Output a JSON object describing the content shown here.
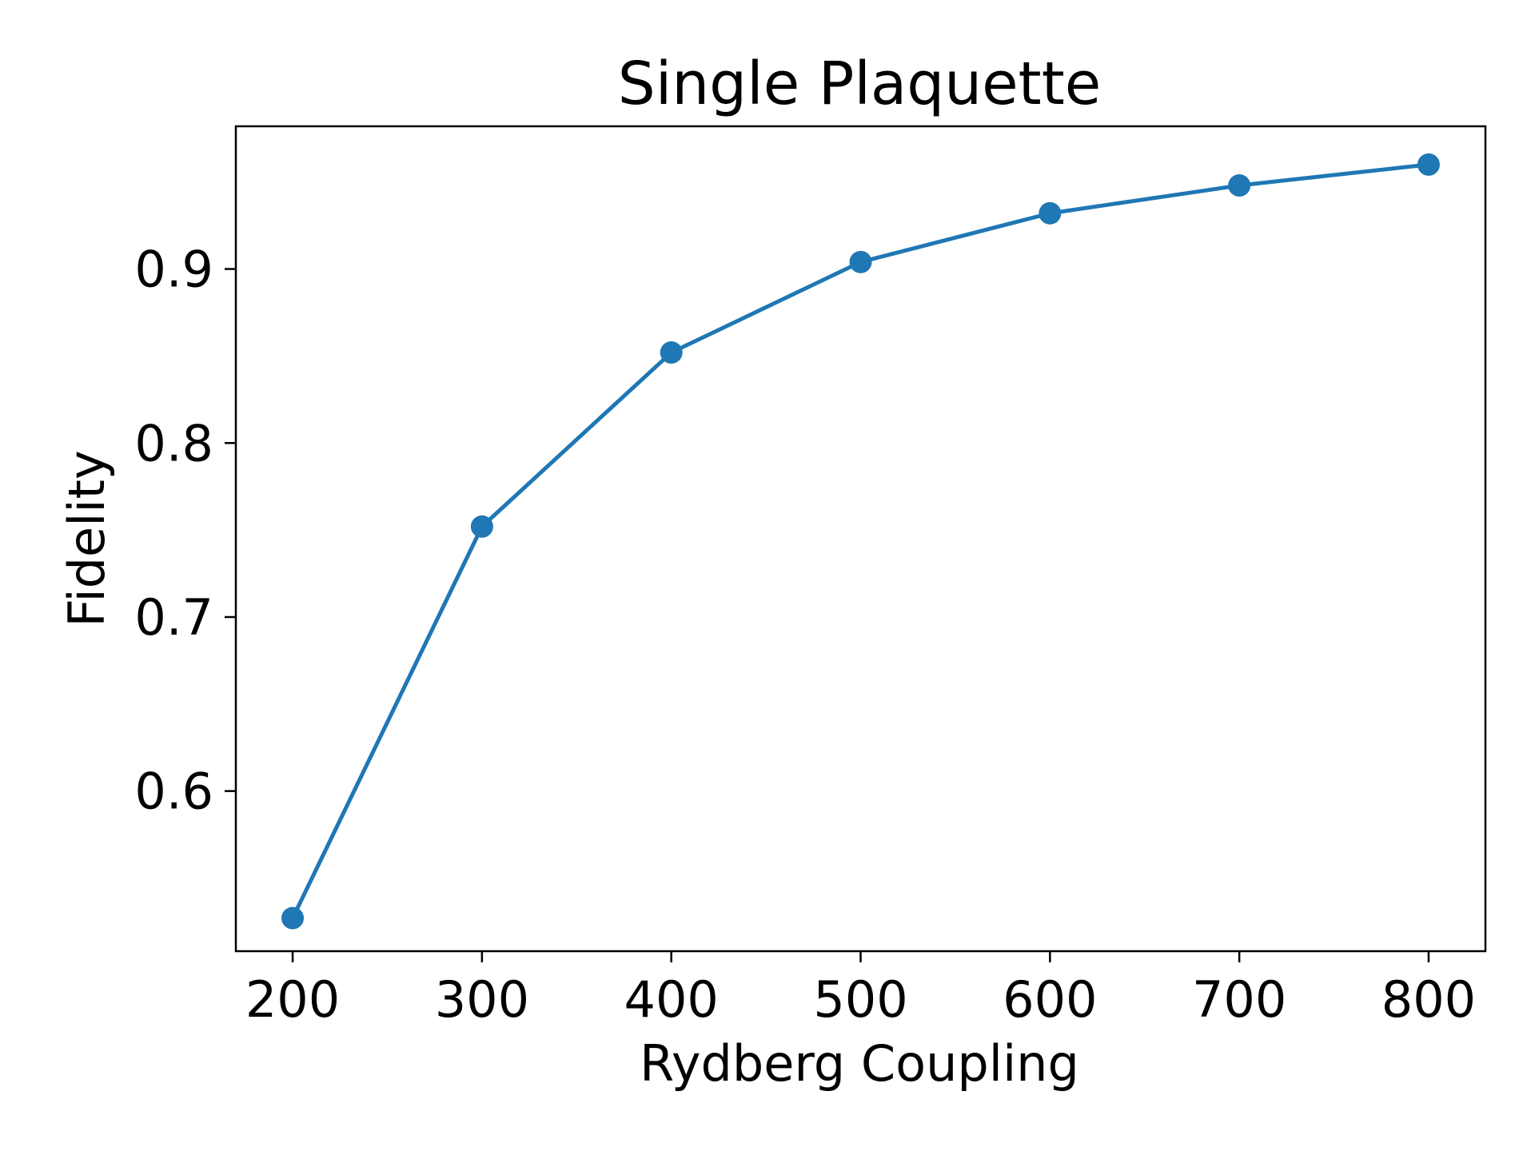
{
  "chart_data": {
    "type": "line",
    "title": "Single Plaquette",
    "xlabel": "Rydberg Coupling",
    "ylabel": "Fidelity",
    "x": [
      200,
      300,
      400,
      500,
      600,
      700,
      800
    ],
    "series": [
      {
        "values": [
          0.527,
          0.752,
          0.852,
          0.904,
          0.932,
          0.948,
          0.96
        ],
        "color": "#1f77b4",
        "marker": "circle"
      }
    ],
    "xlim": [
      170,
      830
    ],
    "ylim": [
      0.508,
      0.982
    ],
    "xticks": [
      200,
      300,
      400,
      500,
      600,
      700,
      800
    ],
    "yticks": [
      0.6,
      0.7,
      0.8,
      0.9
    ],
    "ytick_labels": [
      "0.6",
      "0.7",
      "0.8",
      "0.9"
    ],
    "grid": false,
    "legend": "none"
  }
}
